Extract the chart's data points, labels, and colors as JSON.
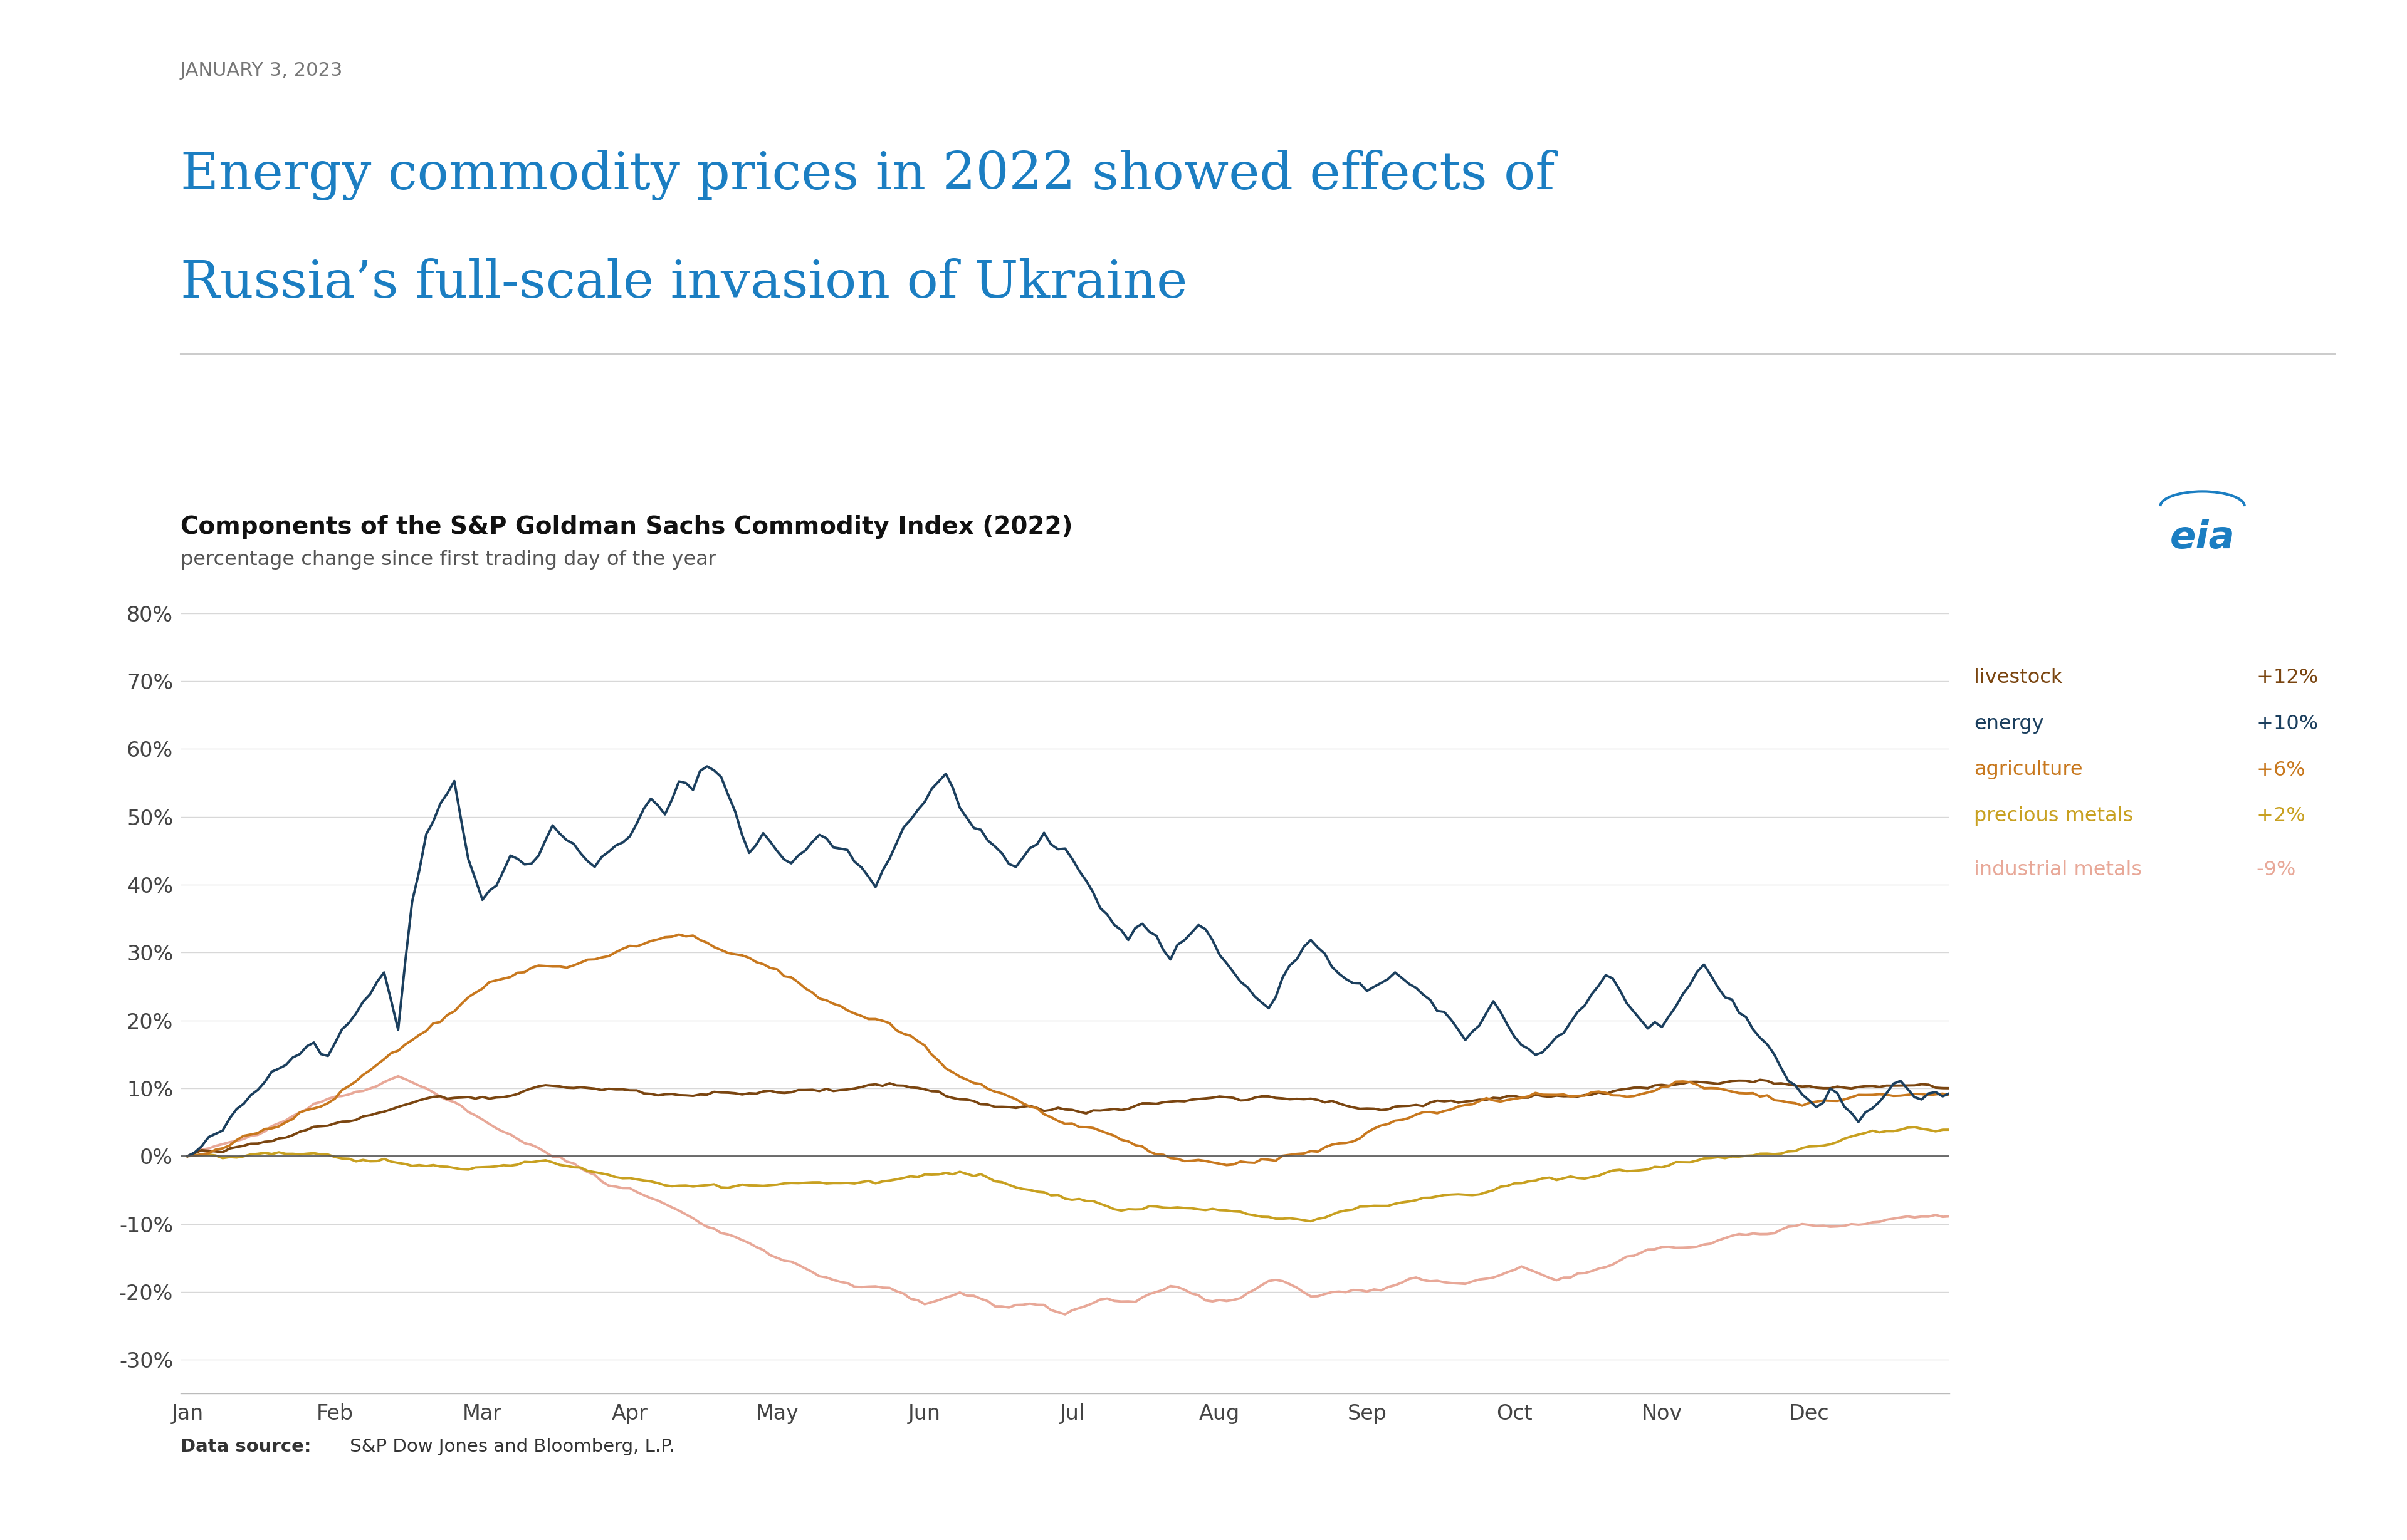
{
  "date_label": "JANUARY 3, 2023",
  "title_line1": "Energy commodity prices in 2022 showed effects of",
  "title_line2": "Russia’s full-scale invasion of Ukraine",
  "chart_title": "Components of the S&P Goldman Sachs Commodity Index (2022)",
  "chart_subtitle": "percentage change since first trading day of the year",
  "data_source_bold": "Data source:",
  "data_source_rest": " S&P Dow Jones and Bloomberg, L.P.",
  "title_color": "#1b7ec2",
  "date_color": "#777777",
  "chart_title_color": "#111111",
  "background_color": "#ffffff",
  "ylim": [
    -35,
    83
  ],
  "yticks": [
    -30,
    -20,
    -10,
    0,
    10,
    20,
    30,
    40,
    50,
    60,
    70,
    80
  ],
  "series_energy_color": "#1b3f5e",
  "series_agriculture_color": "#c8781e",
  "series_livestock_color": "#7a4510",
  "series_precious_color": "#c8a020",
  "series_indmetals_color": "#e8a898",
  "legend_labels": [
    "livestock",
    "energy",
    "agriculture",
    "precious metals",
    "industrial metals"
  ],
  "legend_values": [
    " +12%",
    " +10%",
    " +6%",
    " +2%",
    " -9%"
  ],
  "legend_label_colors": [
    "#7a4510",
    "#1b3f5e",
    "#c8781e",
    "#c8a020",
    "#e8a898"
  ],
  "months": [
    "Jan",
    "Feb",
    "Mar",
    "Apr",
    "May",
    "Jun",
    "Jul",
    "Aug",
    "Sep",
    "Oct",
    "Nov",
    "Dec"
  ],
  "month_positions": [
    0,
    21,
    42,
    63,
    84,
    105,
    126,
    147,
    168,
    189,
    210,
    231
  ],
  "n_days": 252
}
